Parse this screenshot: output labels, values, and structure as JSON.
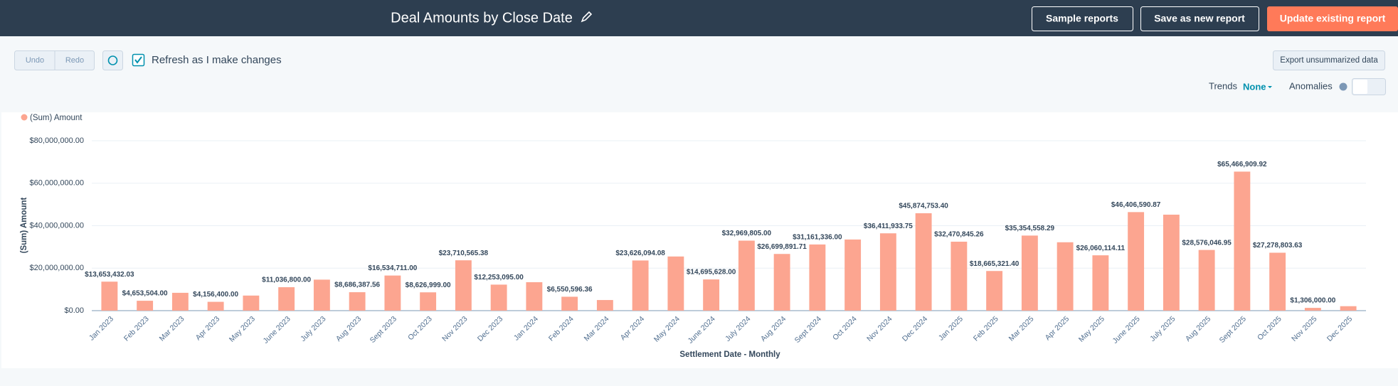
{
  "header": {
    "title": "Deal Amounts by Close Date",
    "buttons": [
      "Sample reports",
      "Save as new report",
      "Update existing report"
    ]
  },
  "toolbar": {
    "undo": "Undo",
    "redo": "Redo",
    "refresh_label": "Refresh as I make changes",
    "export": "Export unsummarized data",
    "trends": "Trends",
    "trends_value": "None",
    "anomalies": "Anomalies"
  },
  "chart_data": {
    "type": "bar",
    "legend": "(Sum) Amount",
    "y_label": "(Sum) Amount",
    "x_label": "Settlement Date - Monthly",
    "color": "#fca590",
    "grid": true,
    "categories": [
      "Jan 2023",
      "Feb 2023",
      "Mar 2023",
      "Apr 2023",
      "May 2023",
      "June 2023",
      "July 2023",
      "Aug 2023",
      "Sept 2023",
      "Oct 2023",
      "Nov 2023",
      "Dec 2023",
      "Jan 2024",
      "Feb 2024",
      "Mar 2024",
      "Apr 2024",
      "May 2024",
      "June 2024",
      "July 2024",
      "Aug 2024",
      "Sept 2024",
      "Oct 2024",
      "Nov 2024",
      "Dec 2024",
      "Jan 2025",
      "Feb 2025",
      "Mar 2025",
      "Apr 2025",
      "May 2025",
      "June 2025",
      "July 2025",
      "Aug 2025",
      "Sept 2025",
      "Oct 2025",
      "Nov 2025",
      "Dec 2025"
    ],
    "values": [
      13653432.03,
      4653504.0,
      8400000,
      4156400.0,
      7100000,
      11036800.0,
      14600000,
      8686387.56,
      16534711.0,
      8626999.0,
      23710565.38,
      12253095.0,
      13400000,
      6550596.36,
      5000000,
      23626094.08,
      25500000,
      14695628.0,
      32969805.0,
      26699891.71,
      31161336.0,
      33500000,
      36411933.75,
      45874753.4,
      32470845.26,
      18665321.4,
      35354558.29,
      32200000,
      26060114.11,
      46406590.87,
      45200000,
      28576046.95,
      65466909.92,
      27278803.63,
      1306000.0,
      2100000
    ],
    "value_labels": [
      "$13,653,432.03",
      "$4,653,504.00",
      null,
      "$4,156,400.00",
      null,
      "$11,036,800.00",
      null,
      "$8,686,387.56",
      "$16,534,711.00",
      "$8,626,999.00",
      "$23,710,565.38",
      "$12,253,095.00",
      null,
      "$6,550,596.36",
      null,
      "$23,626,094.08",
      null,
      "$14,695,628.00",
      "$32,969,805.00",
      "$26,699,891.71",
      "$31,161,336.00",
      null,
      "$36,411,933.75",
      "$45,874,753.40",
      "$32,470,845.26",
      "$18,665,321.40",
      "$35,354,558.29",
      null,
      "$26,060,114.11",
      "$46,406,590.87",
      null,
      "$28,576,046.95",
      "$65,466,909.92",
      "$27,278,803.63",
      "$1,306,000.00",
      null
    ],
    "ylim": [
      0,
      80000000
    ],
    "yticks": [
      {
        "value": 0,
        "label": "$0.00"
      },
      {
        "value": 20000000,
        "label": "$20,000,000.00"
      },
      {
        "value": 40000000,
        "label": "$40,000,000.00"
      },
      {
        "value": 60000000,
        "label": "$60,000,000.00"
      },
      {
        "value": 80000000,
        "label": "$80,000,000.00"
      }
    ]
  }
}
